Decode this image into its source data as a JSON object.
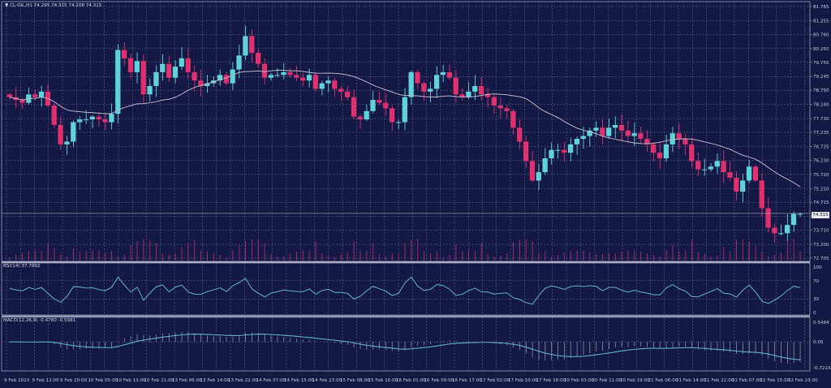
{
  "header": {
    "symbol_line": "CL-OIL,H1  74.295 74.315 74.208 74.315",
    "triangle_icon": "down-triangle-icon"
  },
  "colors": {
    "background": "#131844",
    "grid": "#6a6f9a",
    "bull": "#5fd3dc",
    "bear": "#e0306e",
    "ma": "#bdb6c6",
    "volume": "#b02a72",
    "indicator_line": "#5ab4cc",
    "separator": "#b8bccc"
  },
  "price_panel": {
    "current_price": "74.315",
    "y_ticks": [
      "81.765",
      "81.255",
      "80.760",
      "80.250",
      "79.755",
      "79.245",
      "78.750",
      "78.240",
      "77.730",
      "77.235",
      "76.725",
      "76.230",
      "75.720",
      "75.210",
      "74.715",
      "74.205",
      "73.710",
      "73.200",
      "72.705"
    ]
  },
  "rsi_panel": {
    "title": "RSI(14) 37.7992",
    "y_ticks": [
      "100",
      "70",
      "30",
      "0"
    ]
  },
  "macd_panel": {
    "title": "MACD(12,26,9) -0.4780 -0.5981",
    "y_ticks": [
      "0.5484",
      "0.00",
      "-0.7224"
    ]
  },
  "x_axis": {
    "labels": [
      "9 Feb 2023",
      "9 Feb 12:00",
      "9 Feb 20:00",
      "10 Feb 05:00",
      "10 Feb 13:00",
      "10 Feb 21:00",
      "13 Feb 06:00",
      "13 Feb 14:00",
      "13 Feb 22:00",
      "14 Feb 07:00",
      "14 Feb 15:00",
      "14 Feb 23:00",
      "15 Feb 08:00",
      "15 Feb 16:00",
      "16 Feb 01:00",
      "16 Feb 09:00",
      "16 Feb 17:00",
      "17 Feb 02:00",
      "17 Feb 10:00",
      "17 Feb 18:00",
      "20 Feb 03:00",
      "20 Feb 11:00",
      "20 Feb 19:00",
      "21 Feb 06:00",
      "21 Feb 14:00",
      "21 Feb 22:00",
      "22 Feb 07:00",
      "22 Feb 15:00",
      "22 Feb 23:00"
    ]
  },
  "chart_data": [
    {
      "type": "candlestick",
      "title": "CL-OIL,H1",
      "ohlc_header": {
        "open": 74.295,
        "high": 74.315,
        "low": 74.208,
        "close": 74.315
      },
      "ylim": [
        72.705,
        81.765
      ],
      "overlay": "moving average (light grey)",
      "close_approx": [
        78.5,
        78.4,
        78.3,
        78.6,
        78.5,
        78.7,
        78.2,
        77.5,
        76.8,
        76.9,
        77.6,
        77.7,
        77.7,
        77.8,
        77.7,
        77.6,
        77.9,
        80.2,
        79.9,
        79.4,
        79.8,
        78.6,
        78.9,
        79.4,
        79.7,
        79.2,
        79.6,
        79.9,
        79.4,
        79.1,
        78.9,
        79.0,
        79.1,
        79.3,
        79.0,
        79.5,
        80.0,
        80.7,
        80.1,
        79.7,
        79.2,
        79.3,
        79.3,
        79.4,
        79.3,
        79.2,
        79.1,
        79.3,
        78.8,
        79.0,
        79.1,
        78.8,
        78.7,
        78.5,
        77.8,
        77.7,
        78.0,
        78.4,
        78.3,
        78.1,
        77.6,
        77.6,
        78.5,
        79.4,
        79.0,
        78.7,
        78.8,
        79.3,
        79.4,
        79.2,
        78.6,
        78.5,
        78.7,
        78.9,
        78.6,
        78.5,
        78.2,
        78.1,
        78.0,
        77.4,
        76.9,
        76.2,
        75.5,
        75.8,
        76.3,
        76.6,
        76.6,
        76.5,
        76.8,
        77.0,
        77.1,
        77.3,
        77.4,
        77.1,
        77.4,
        77.5,
        77.3,
        77.1,
        77.2,
        77.0,
        76.8,
        76.5,
        76.3,
        76.8,
        77.2,
        77.0,
        76.8,
        76.2,
        75.9,
        75.9,
        76.0,
        76.2,
        75.8,
        75.6,
        75.1,
        75.5,
        76.0,
        75.5,
        74.5,
        73.8,
        73.6,
        73.6,
        73.9,
        74.3,
        74.3
      ],
      "volume": "magenta histogram along bottom of price panel"
    },
    {
      "type": "line",
      "title": "RSI(14) 37.7992",
      "ylim": [
        0,
        100
      ],
      "levels": [
        70,
        30
      ],
      "last": 37.7992
    },
    {
      "type": "line+histogram",
      "title": "MACD(12,26,9) -0.4780 -0.5981",
      "ylim": [
        -0.7224,
        0.5484
      ],
      "zero_line": 0.0,
      "last_macd": -0.478,
      "last_signal": -0.5981
    }
  ]
}
